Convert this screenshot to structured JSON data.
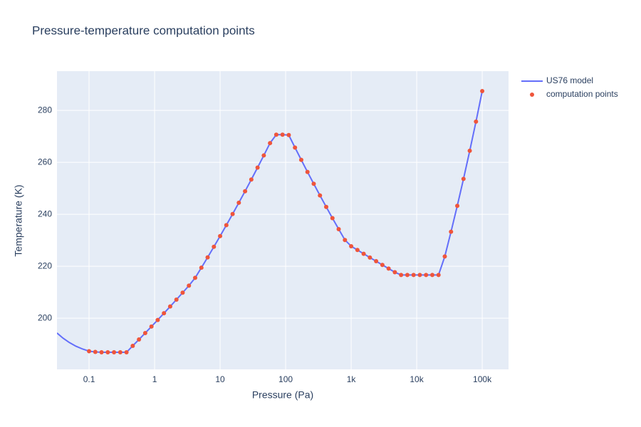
{
  "chart_data": {
    "type": "line",
    "title": "Pressure-temperature computation points",
    "x_label": "Pressure (Pa)",
    "y_label": "Temperature (K)",
    "xlog": true,
    "grid": true,
    "xlim": [
      0.0324,
      252000
    ],
    "ylim": [
      180.3,
      295.1
    ],
    "xticks": [
      0.1,
      1,
      10,
      100,
      {
        "value": 1000,
        "label": "1k"
      },
      {
        "value": 10000,
        "label": "10k"
      },
      {
        "value": 100000,
        "label": "100k"
      }
    ],
    "yticks": [
      200,
      220,
      240,
      260,
      280
    ],
    "series": [
      {
        "name": "US76 model",
        "mode": "lines",
        "color": "#636efa",
        "x": [
          0.0324,
          0.04,
          0.05,
          0.063,
          0.08,
          0.1,
          0.12454,
          0.1551,
          0.19307,
          0.24045,
          0.29946,
          0.37276,
          0.46416,
          0.57797,
          0.71969,
          0.89615,
          1.116,
          1.3895,
          1.7305,
          2.1544,
          2.6827,
          3.341,
          4.1609,
          5.1795,
          6.4505,
          8.0335,
          10,
          12.454,
          15.51,
          19.307,
          24.045,
          29.946,
          37.276,
          46.416,
          57.797,
          71.969,
          89.615,
          111.6,
          138.95,
          173.05,
          215.44,
          268.27,
          334.1,
          416.09,
          517.95,
          645.05,
          803.34,
          1000,
          1245.4,
          1551,
          1930.7,
          2404.5,
          2994.6,
          3727.6,
          4641.6,
          5779.7,
          7196.9,
          8961.5,
          11160,
          13895,
          17305,
          21544,
          26827,
          33410,
          41609,
          51795,
          64505,
          80335,
          100000
        ],
        "values": [
          194.3,
          192.33,
          190.63,
          189.22,
          188.11,
          187.3,
          187.0,
          186.87,
          186.87,
          186.87,
          186.87,
          186.87,
          189.35,
          191.8,
          194.28,
          196.79,
          199.32,
          201.9,
          204.51,
          207.15,
          209.82,
          212.53,
          215.54,
          219.45,
          223.43,
          227.49,
          231.61,
          235.82,
          240.09,
          244.44,
          248.88,
          253.38,
          257.98,
          262.65,
          267.41,
          270.65,
          270.65,
          270.51,
          265.69,
          260.96,
          256.31,
          251.74,
          247.26,
          242.85,
          238.53,
          234.28,
          230.11,
          227.7,
          226.25,
          224.8,
          223.36,
          221.93,
          220.51,
          219.1,
          217.7,
          216.65,
          216.65,
          216.65,
          216.65,
          216.65,
          216.65,
          216.65,
          223.75,
          233.29,
          243.24,
          253.62,
          264.44,
          275.69,
          287.43
        ]
      },
      {
        "name": "computation points",
        "mode": "markers",
        "color": "#ef553b",
        "x": [
          0.1,
          0.12454,
          0.1551,
          0.19307,
          0.24045,
          0.29946,
          0.37276,
          0.46416,
          0.57797,
          0.71969,
          0.89615,
          1.116,
          1.3895,
          1.7305,
          2.1544,
          2.6827,
          3.341,
          4.1609,
          5.1795,
          6.4505,
          8.0335,
          10,
          12.454,
          15.51,
          19.307,
          24.045,
          29.946,
          37.276,
          46.416,
          57.797,
          71.969,
          89.615,
          111.6,
          138.95,
          173.05,
          215.44,
          268.27,
          334.1,
          416.09,
          517.95,
          645.05,
          803.34,
          1000,
          1245.4,
          1551,
          1930.7,
          2404.5,
          2994.6,
          3727.6,
          4641.6,
          5779.7,
          7196.9,
          8961.5,
          11160,
          13895,
          17305,
          21544,
          26827,
          33410,
          41609,
          51795,
          64505,
          80335,
          100000
        ],
        "values": [
          187.3,
          187.0,
          186.87,
          186.87,
          186.87,
          186.87,
          186.87,
          189.35,
          191.8,
          194.28,
          196.79,
          199.32,
          201.9,
          204.51,
          207.15,
          209.82,
          212.53,
          215.54,
          219.45,
          223.43,
          227.49,
          231.61,
          235.82,
          240.09,
          244.44,
          248.88,
          253.38,
          257.98,
          262.65,
          267.41,
          270.65,
          270.65,
          270.51,
          265.69,
          260.96,
          256.31,
          251.74,
          247.26,
          242.85,
          238.53,
          234.28,
          230.11,
          227.7,
          226.25,
          224.8,
          223.36,
          221.93,
          220.51,
          219.1,
          217.7,
          216.65,
          216.65,
          216.65,
          216.65,
          216.65,
          216.65,
          216.65,
          223.75,
          233.29,
          243.24,
          253.62,
          264.44,
          275.69,
          287.43
        ]
      }
    ]
  }
}
